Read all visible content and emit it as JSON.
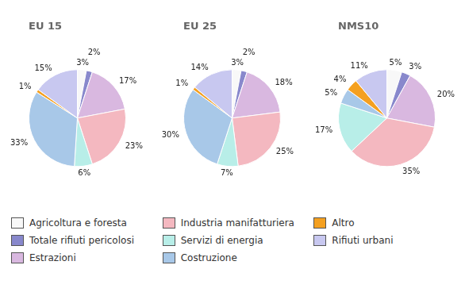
{
  "chart_data": [
    {
      "type": "pie",
      "title": "EU 15",
      "categories": [
        "Agricoltura e foresta",
        "Totale rifiuti pericolosi",
        "Estrazioni",
        "Industria manifatturiera",
        "Servizi di energia",
        "Costruzione",
        "Altro",
        "Rifiuti urbani"
      ],
      "values": [
        3,
        2,
        17,
        23,
        6,
        33,
        1,
        15
      ],
      "value_labels": [
        "3%",
        "2%",
        "17%",
        "23%",
        "6%",
        "33%",
        "1%",
        "15%"
      ],
      "colors": [
        "#f8f8f8",
        "#8888cc",
        "#d9b8e0",
        "#f4b8c0",
        "#b8eee8",
        "#a8c8e8",
        "#f4a020",
        "#c8c8f0"
      ],
      "data_labels": true,
      "legend": "bottom"
    },
    {
      "type": "pie",
      "title": "EU 25",
      "categories": [
        "Agricoltura e foresta",
        "Totale rifiuti pericolosi",
        "Estrazioni",
        "Industria manifatturiera",
        "Servizi di energia",
        "Costruzione",
        "Altro",
        "Rifiuti urbani"
      ],
      "values": [
        3,
        2,
        18,
        25,
        7,
        30,
        1,
        14
      ],
      "value_labels": [
        "3%",
        "2%",
        "18%",
        "25%",
        "7%",
        "30%",
        "1%",
        "14%"
      ],
      "colors": [
        "#f8f8f8",
        "#8888cc",
        "#d9b8e0",
        "#f4b8c0",
        "#b8eee8",
        "#a8c8e8",
        "#f4a020",
        "#c8c8f0"
      ],
      "data_labels": true,
      "legend": "bottom"
    },
    {
      "type": "pie",
      "title": "NMS10",
      "categories": [
        "Agricoltura e foresta",
        "Totale rifiuti pericolosi",
        "Estrazioni",
        "Industria manifatturiera",
        "Servizi di energia",
        "Costruzione",
        "Altro",
        "Rifiuti urbani"
      ],
      "values": [
        5,
        3,
        20,
        35,
        17,
        5,
        4,
        11
      ],
      "value_labels": [
        "5%",
        "3%",
        "20%",
        "35%",
        "17%",
        "5%",
        "4%",
        "11%"
      ],
      "colors": [
        "#f8f8f8",
        "#8888cc",
        "#d9b8e0",
        "#f4b8c0",
        "#b8eee8",
        "#a8c8e8",
        "#f4a020",
        "#c8c8f0"
      ],
      "data_labels": true,
      "legend": "bottom"
    }
  ]
}
